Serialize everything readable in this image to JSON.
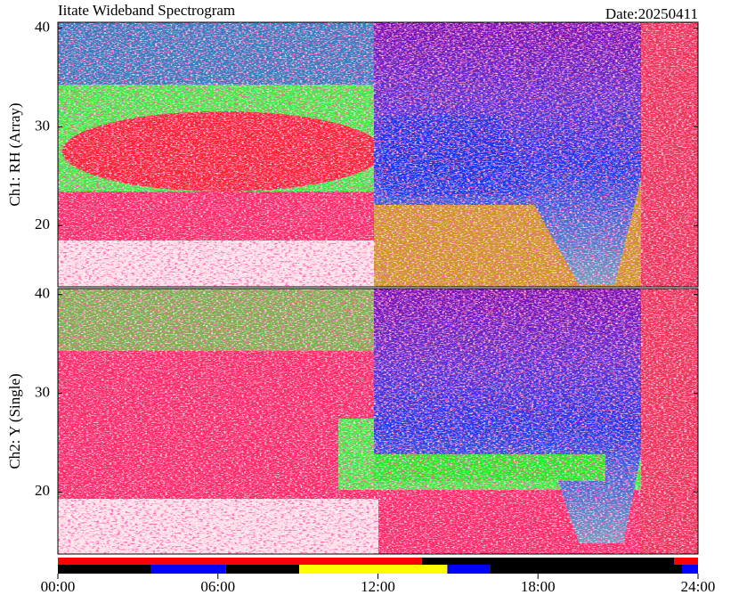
{
  "title": "Iitate Wideband Spectrogram",
  "date": "Date:20250411",
  "chart_data": [
    {
      "type": "spectrogram",
      "y_label": "Ch1: RH (Array)",
      "ylim": [
        13.8,
        40.6
      ],
      "yticks": [
        20,
        30,
        40
      ]
    },
    {
      "type": "spectrogram",
      "y_label": "Ch2: Y (Single)",
      "ylim": [
        13.7,
        40.6
      ],
      "yticks": [
        20,
        30,
        40
      ]
    }
  ],
  "time_axis": {
    "xlim": [
      0,
      24
    ],
    "xticks": [
      {
        "value": 0,
        "label": "00:00"
      },
      {
        "value": 6,
        "label": "06:00"
      },
      {
        "value": 12,
        "label": "12:00"
      },
      {
        "value": 18,
        "label": "18:00"
      },
      {
        "value": 24,
        "label": "24:00"
      }
    ]
  },
  "status_bar": [
    [
      {
        "start": 0,
        "end": 13.65,
        "color": "#ff0000"
      },
      {
        "start": 13.65,
        "end": 23.1,
        "color": "#000000"
      },
      {
        "start": 23.1,
        "end": 24,
        "color": "#ff0000"
      }
    ],
    [
      {
        "start": 0,
        "end": 3.5,
        "color": "#000000"
      },
      {
        "start": 3.5,
        "end": 6.3,
        "color": "#0000ff"
      },
      {
        "start": 6.3,
        "end": 9.05,
        "color": "#000000"
      },
      {
        "start": 9.05,
        "end": 14.6,
        "color": "#ffff00"
      },
      {
        "start": 14.6,
        "end": 16.2,
        "color": "#0000ff"
      },
      {
        "start": 16.2,
        "end": 23.4,
        "color": "#000000"
      },
      {
        "start": 23.4,
        "end": 24,
        "color": "#0000ff"
      }
    ]
  ]
}
